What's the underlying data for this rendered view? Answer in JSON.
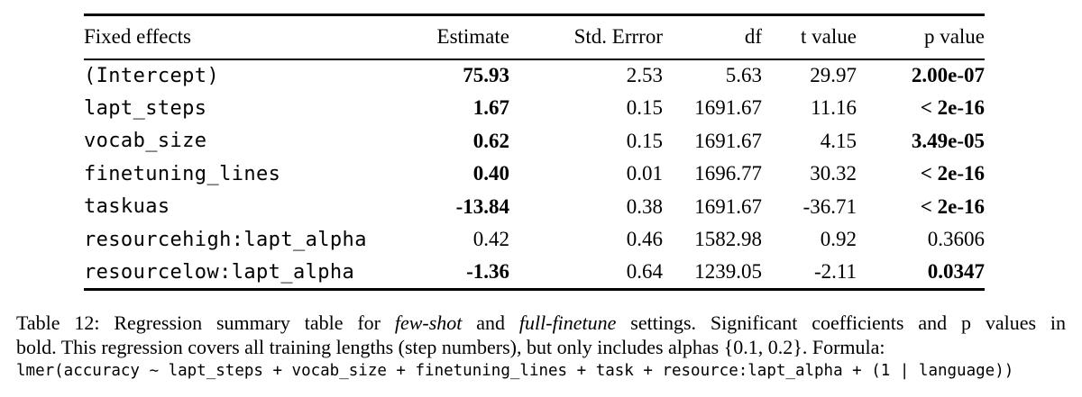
{
  "colors": {
    "text": "#000000",
    "background": "#ffffff",
    "rule": "#000000"
  },
  "table": {
    "columns": [
      "Fixed effects",
      "Estimate",
      "Std. Errror",
      "df",
      "t value",
      "p value"
    ],
    "rows": [
      {
        "label": "(Intercept)",
        "estimate": "75.93",
        "estimate_bold": true,
        "std_error": "2.53",
        "df": "5.63",
        "t_value": "29.97",
        "p_value": "2.00e-07",
        "p_bold": true
      },
      {
        "label": "lapt_steps",
        "estimate": "1.67",
        "estimate_bold": true,
        "std_error": "0.15",
        "df": "1691.67",
        "t_value": "11.16",
        "p_value": "< 2e-16",
        "p_bold": true
      },
      {
        "label": "vocab_size",
        "estimate": "0.62",
        "estimate_bold": true,
        "std_error": "0.15",
        "df": "1691.67",
        "t_value": "4.15",
        "p_value": "3.49e-05",
        "p_bold": true
      },
      {
        "label": "finetuning_lines",
        "estimate": "0.40",
        "estimate_bold": true,
        "std_error": "0.01",
        "df": "1696.77",
        "t_value": "30.32",
        "p_value": "< 2e-16",
        "p_bold": true
      },
      {
        "label": "taskuas",
        "estimate": "-13.84",
        "estimate_bold": true,
        "std_error": "0.38",
        "df": "1691.67",
        "t_value": "-36.71",
        "p_value": "< 2e-16",
        "p_bold": true
      },
      {
        "label": "resourcehigh:lapt_alpha",
        "estimate": "0.42",
        "estimate_bold": false,
        "std_error": "0.46",
        "df": "1582.98",
        "t_value": "0.92",
        "p_value": "0.3606",
        "p_bold": false
      },
      {
        "label": "resourcelow:lapt_alpha",
        "estimate": "-1.36",
        "estimate_bold": true,
        "std_error": "0.64",
        "df": "1239.05",
        "t_value": "-2.11",
        "p_value": "0.0347",
        "p_bold": true
      }
    ]
  },
  "caption": {
    "line1_segments": [
      {
        "text": "Table 12: Regression summary table for ",
        "italic": false
      },
      {
        "text": "few-shot",
        "italic": true
      },
      {
        "text": " and ",
        "italic": false
      },
      {
        "text": "full-finetune",
        "italic": true
      },
      {
        "text": " settings. Significant coefficients and p values in",
        "italic": false
      }
    ],
    "line2": "bold. This regression covers all training lengths (step numbers), but only includes alphas {0.1, 0.2}. Formula:",
    "formula": "lmer(accuracy ∼ lapt_steps + vocab_size + finetuning_lines + task + resource:lapt_alpha + (1 | language))"
  }
}
